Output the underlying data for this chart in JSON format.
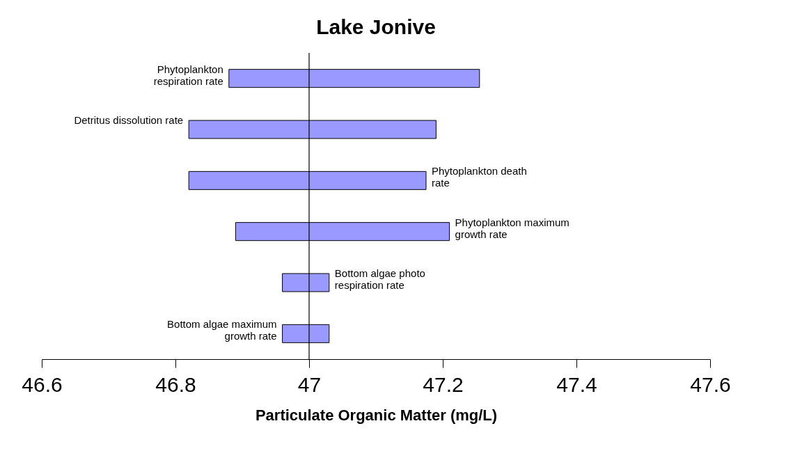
{
  "chart_data": {
    "type": "bar",
    "orientation": "horizontal",
    "title": "Lake Jonive",
    "xlabel": "Particulate Organic Matter (mg/L)",
    "categories": [
      "Phytoplankton\nrespiration rate",
      "Detritus dissolution rate",
      "Phytoplankton death\nrate",
      "Phytoplankton maximum\ngrowth rate",
      "Bottom algae photo\nrespiration rate",
      "Bottom algae maximum\ngrowth rate"
    ],
    "base": [
      46.88,
      46.82,
      46.82,
      46.89,
      46.96,
      46.96
    ],
    "values": [
      0.375,
      0.37,
      0.355,
      0.32,
      0.07,
      0.07
    ],
    "color": "#9999ff",
    "xlim": [
      46.6,
      47.6
    ],
    "xticks": [
      46.6,
      46.8,
      47,
      47.2,
      47.4,
      47.6
    ],
    "ref_lines": [
      {
        "axis": "x",
        "value": 47,
        "color": "#000000"
      }
    ],
    "grid": false,
    "tick_labels": "x"
  }
}
